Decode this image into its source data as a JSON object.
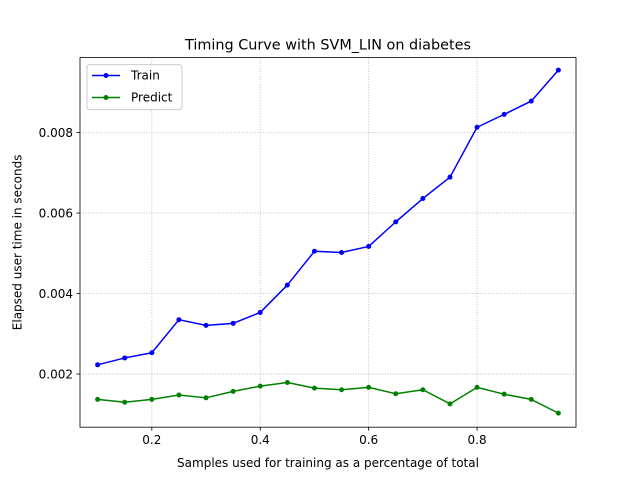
{
  "chart_data": {
    "type": "line",
    "title": "Timing Curve with SVM_LIN on diabetes",
    "xlabel": "Samples used for training as a percentage of total",
    "ylabel": "Elapsed user time in seconds",
    "xlim": [
      0.0675,
      0.9825
    ],
    "ylim": [
      0.00068,
      0.00986
    ],
    "xticks": [
      0.2,
      0.4,
      0.6,
      0.8
    ],
    "xtick_labels": [
      "0.2",
      "0.4",
      "0.6",
      "0.8"
    ],
    "yticks": [
      0.002,
      0.004,
      0.006,
      0.008
    ],
    "ytick_labels": [
      "0.002",
      "0.004",
      "0.006",
      "0.008"
    ],
    "grid": true,
    "legend_position": "top-left",
    "x": [
      0.1,
      0.15,
      0.2,
      0.25,
      0.3,
      0.35,
      0.4,
      0.45,
      0.5,
      0.55,
      0.6,
      0.65,
      0.7,
      0.75,
      0.8,
      0.85,
      0.9,
      0.95
    ],
    "series": [
      {
        "name": "Train",
        "color": "#0000ff",
        "values": [
          0.00223,
          0.0024,
          0.00253,
          0.00335,
          0.00321,
          0.00326,
          0.00353,
          0.00421,
          0.00505,
          0.00502,
          0.00517,
          0.00578,
          0.00636,
          0.00689,
          0.00813,
          0.00845,
          0.00878,
          0.00955
        ]
      },
      {
        "name": "Predict",
        "color": "#008000",
        "values": [
          0.00137,
          0.0013,
          0.00137,
          0.00148,
          0.00141,
          0.00157,
          0.0017,
          0.00179,
          0.00165,
          0.00161,
          0.00167,
          0.00151,
          0.00161,
          0.00126,
          0.00167,
          0.0015,
          0.00137,
          0.00103
        ]
      }
    ]
  }
}
